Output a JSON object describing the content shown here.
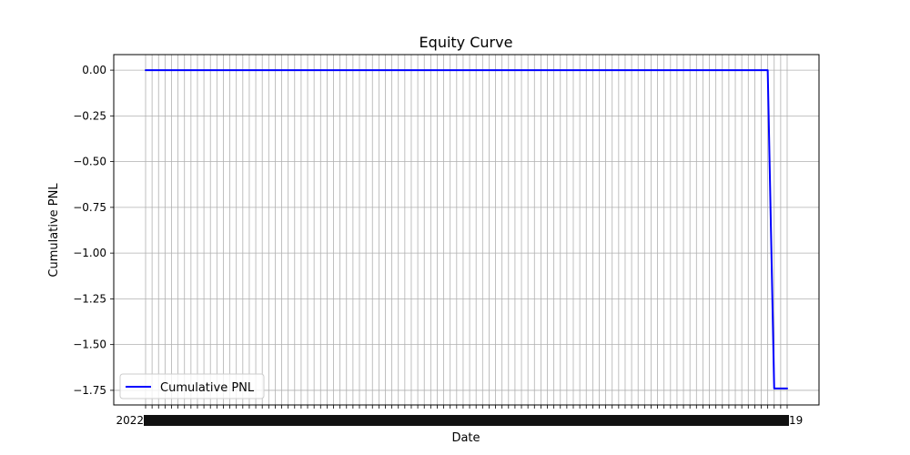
{
  "chart_data": {
    "type": "line",
    "title": "Equity Curve",
    "xlabel": "Date",
    "ylabel": "Cumulative PNL",
    "ylim": [
      -1.83,
      0.085
    ],
    "yticks": [
      0.0,
      -0.25,
      -0.5,
      -0.75,
      -1.0,
      -1.25,
      -1.5,
      -1.75
    ],
    "ytick_labels": [
      "0.00",
      "−0.25",
      "−0.50",
      "−0.75",
      "−1.00",
      "−1.25",
      "−1.50",
      "−1.75"
    ],
    "x_category_count": 100,
    "x_tick_labels_note": "dense overlapping date tick labels; first readable prefix and last readable suffix shown",
    "x_tick_label_first": "2022",
    "x_tick_label_last": "19",
    "grid": true,
    "legend_position": "lower-left",
    "series": [
      {
        "name": "Cumulative PNL",
        "color": "#0000ff",
        "values": [
          0,
          0,
          0,
          0,
          0,
          0,
          0,
          0,
          0,
          0,
          0,
          0,
          0,
          0,
          0,
          0,
          0,
          0,
          0,
          0,
          0,
          0,
          0,
          0,
          0,
          0,
          0,
          0,
          0,
          0,
          0,
          0,
          0,
          0,
          0,
          0,
          0,
          0,
          0,
          0,
          0,
          0,
          0,
          0,
          0,
          0,
          0,
          0,
          0,
          0,
          0,
          0,
          0,
          0,
          0,
          0,
          0,
          0,
          0,
          0,
          0,
          0,
          0,
          0,
          0,
          0,
          0,
          0,
          0,
          0,
          0,
          0,
          0,
          0,
          0,
          0,
          0,
          0,
          0,
          0,
          0,
          0,
          0,
          0,
          0,
          0,
          0,
          0,
          0,
          0,
          0,
          0,
          0,
          0,
          0,
          0,
          0,
          -1.74,
          -1.74,
          -1.74
        ]
      }
    ]
  }
}
